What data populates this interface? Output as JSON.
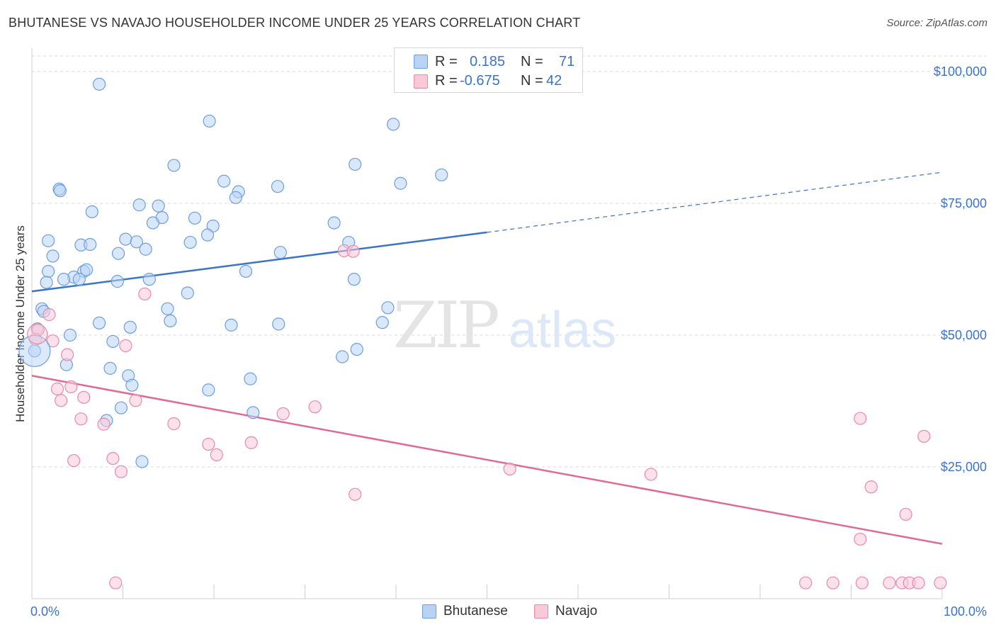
{
  "header": {
    "title": "BHUTANESE VS NAVAJO HOUSEHOLDER INCOME UNDER 25 YEARS CORRELATION CHART",
    "source": "Source: ZipAtlas.com"
  },
  "watermark": {
    "zip": "ZIP",
    "atlas": "atlas"
  },
  "legend": {
    "r_label": "R =",
    "n_label": "N =",
    "rows": [
      {
        "r": "0.185",
        "n": "71",
        "color": "#b9d3f5",
        "border": "#6b9fe0"
      },
      {
        "r": "-0.675",
        "n": "42",
        "color": "#f9c9d8",
        "border": "#e98aa8"
      }
    ]
  },
  "bottom_legend": [
    {
      "label": "Bhutanese",
      "color": "#b9d3f5",
      "border": "#6b9fe0"
    },
    {
      "label": "Navajo",
      "color": "#f9c9d8",
      "border": "#e98aa8"
    }
  ],
  "colors": {
    "blue_line": "#3a74c8",
    "pink_line": "#e06a93",
    "blue_fill": "#b9d3f5",
    "blue_stroke": "#6b9fe0",
    "pink_fill": "#f9c9d8",
    "pink_stroke": "#e98aa8",
    "tick_label": "#3a74c8",
    "grid": "#d9d9d9"
  },
  "chart_data": {
    "type": "scatter",
    "title": "BHUTANESE VS NAVAJO HOUSEHOLDER INCOME UNDER 25 YEARS CORRELATION CHART",
    "xlabel": "",
    "ylabel": "Householder Income Under 25 years",
    "xlim": [
      0,
      100
    ],
    "ylim": [
      0,
      105000
    ],
    "x_tick_labels": [
      "0.0%",
      "100.0%"
    ],
    "y_ticks": [
      {
        "value": 25000,
        "label": "$25,000"
      },
      {
        "value": 50000,
        "label": "$50,000"
      },
      {
        "value": 75000,
        "label": "$75,000"
      },
      {
        "value": 100000,
        "label": "$100,000"
      }
    ],
    "grid": true,
    "legend_position": "top-center",
    "series": [
      {
        "name": "Bhutanese",
        "r": 0.185,
        "n": 71,
        "trend": {
          "x0": 0,
          "y0": 58300,
          "x1": 50,
          "y1": 69500,
          "x_end_dashed": 100,
          "y_end_dashed": 80900
        },
        "points": [
          [
            7.4,
            97600
          ],
          [
            19.5,
            90600
          ],
          [
            39.7,
            90000
          ],
          [
            15.6,
            82200
          ],
          [
            35.5,
            82400
          ],
          [
            40.5,
            78800
          ],
          [
            45.0,
            80400
          ],
          [
            3.0,
            77700
          ],
          [
            3.1,
            77400
          ],
          [
            21.1,
            79200
          ],
          [
            22.7,
            77200
          ],
          [
            22.4,
            76100
          ],
          [
            27.0,
            78200
          ],
          [
            11.8,
            74700
          ],
          [
            13.9,
            74500
          ],
          [
            6.6,
            73400
          ],
          [
            14.3,
            72300
          ],
          [
            13.3,
            71300
          ],
          [
            17.9,
            72200
          ],
          [
            19.9,
            70700
          ],
          [
            33.2,
            71300
          ],
          [
            1.8,
            67900
          ],
          [
            5.4,
            67100
          ],
          [
            6.4,
            67200
          ],
          [
            10.3,
            68200
          ],
          [
            11.5,
            67700
          ],
          [
            12.5,
            66300
          ],
          [
            17.4,
            67600
          ],
          [
            19.3,
            69000
          ],
          [
            34.8,
            67600
          ],
          [
            9.5,
            65500
          ],
          [
            2.3,
            65000
          ],
          [
            27.3,
            65700
          ],
          [
            1.8,
            62100
          ],
          [
            5.7,
            62100
          ],
          [
            4.6,
            61000
          ],
          [
            6.0,
            62400
          ],
          [
            1.6,
            60000
          ],
          [
            3.5,
            60600
          ],
          [
            5.2,
            60600
          ],
          [
            9.4,
            60200
          ],
          [
            12.9,
            60600
          ],
          [
            23.5,
            62100
          ],
          [
            35.4,
            60600
          ],
          [
            17.1,
            58000
          ],
          [
            1.1,
            55000
          ],
          [
            1.3,
            54500
          ],
          [
            14.9,
            55000
          ],
          [
            39.1,
            55200
          ],
          [
            15.2,
            52700
          ],
          [
            7.4,
            52300
          ],
          [
            10.8,
            51500
          ],
          [
            21.9,
            51900
          ],
          [
            27.1,
            52100
          ],
          [
            38.5,
            52400
          ],
          [
            0.6,
            51200
          ],
          [
            4.2,
            50000
          ],
          [
            8.9,
            48800
          ],
          [
            0.3,
            47000
          ],
          [
            35.7,
            47300
          ],
          [
            34.1,
            45900
          ],
          [
            3.8,
            44400
          ],
          [
            8.6,
            43700
          ],
          [
            10.6,
            42300
          ],
          [
            24.0,
            41700
          ],
          [
            11.0,
            40500
          ],
          [
            19.4,
            39600
          ],
          [
            9.8,
            36200
          ],
          [
            24.3,
            35300
          ],
          [
            8.2,
            33800
          ],
          [
            12.1,
            26000
          ]
        ]
      },
      {
        "name": "Navajo",
        "r": -0.675,
        "n": 42,
        "trend": {
          "x0": 0,
          "y0": 42300,
          "x1": 100,
          "y1": 10400
        },
        "points": [
          [
            34.3,
            66000
          ],
          [
            35.3,
            65900
          ],
          [
            12.4,
            57800
          ],
          [
            1.9,
            53900
          ],
          [
            0.7,
            51000
          ],
          [
            0.4,
            49200
          ],
          [
            2.3,
            48900
          ],
          [
            10.3,
            48000
          ],
          [
            3.9,
            46300
          ],
          [
            2.8,
            39800
          ],
          [
            4.3,
            40200
          ],
          [
            3.2,
            37600
          ],
          [
            5.7,
            38200
          ],
          [
            11.4,
            37600
          ],
          [
            27.6,
            35100
          ],
          [
            31.1,
            36400
          ],
          [
            5.4,
            34100
          ],
          [
            7.9,
            33100
          ],
          [
            15.6,
            33200
          ],
          [
            19.4,
            29300
          ],
          [
            24.1,
            29600
          ],
          [
            20.3,
            27300
          ],
          [
            8.9,
            26600
          ],
          [
            4.6,
            26200
          ],
          [
            9.8,
            24100
          ],
          [
            52.5,
            24600
          ],
          [
            68.0,
            23600
          ],
          [
            35.5,
            19800
          ],
          [
            91.0,
            34200
          ],
          [
            98.0,
            30800
          ],
          [
            92.2,
            21200
          ],
          [
            96.0,
            16000
          ],
          [
            91.0,
            11300
          ],
          [
            9.2,
            3000
          ],
          [
            85.0,
            3000
          ],
          [
            88.0,
            3000
          ],
          [
            91.2,
            3000
          ],
          [
            94.2,
            3000
          ],
          [
            95.6,
            3000
          ],
          [
            96.4,
            3000
          ],
          [
            97.4,
            3000
          ],
          [
            99.8,
            3000
          ]
        ]
      }
    ]
  }
}
